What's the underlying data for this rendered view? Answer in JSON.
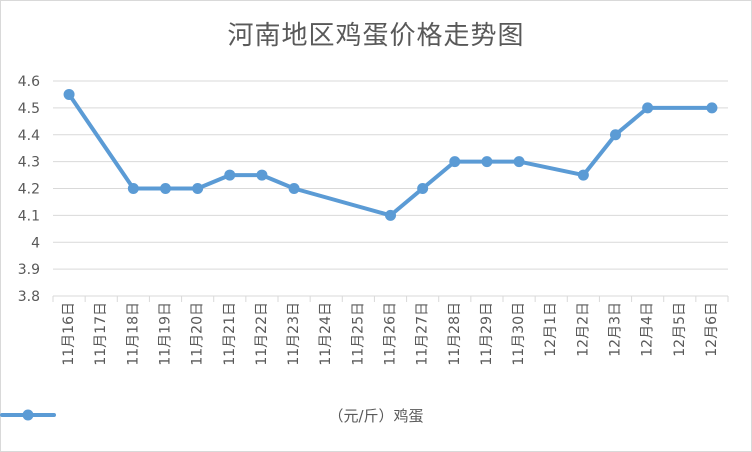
{
  "chart_data": {
    "type": "line",
    "title": "河南地区鸡蛋价格走势图",
    "categories": [
      "11月16日",
      "11月17日",
      "11月18日",
      "11月19日",
      "11月20日",
      "11月21日",
      "11月22日",
      "11月23日",
      "11月24日",
      "11月25日",
      "11月26日",
      "11月27日",
      "11月28日",
      "11月29日",
      "11月30日",
      "12月1日",
      "12月2日",
      "12月3日",
      "12月4日",
      "12月5日",
      "12月6日"
    ],
    "y_ticks": [
      "3.8",
      "3.9",
      "4",
      "4.1",
      "4.2",
      "4.3",
      "4.4",
      "4.5",
      "4.6"
    ],
    "ylim": [
      3.8,
      4.6
    ],
    "grid": true,
    "legend_position": "bottom",
    "series": [
      {
        "name": "（元/斤）鸡蛋",
        "color": "#5b9bd5",
        "values": [
          4.55,
          null,
          4.2,
          4.2,
          4.2,
          4.25,
          4.25,
          4.2,
          null,
          null,
          4.1,
          4.2,
          4.3,
          4.3,
          4.3,
          null,
          4.25,
          4.4,
          4.5,
          null,
          4.5
        ]
      }
    ]
  }
}
